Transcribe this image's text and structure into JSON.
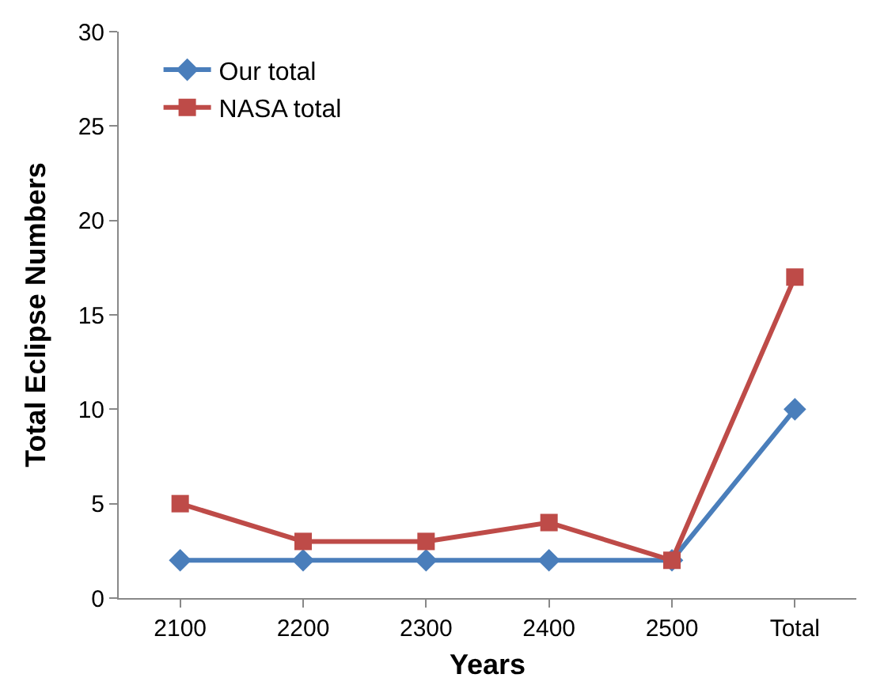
{
  "chart_data": {
    "type": "line",
    "xlabel": "Years",
    "ylabel": "Total Eclipse Numbers",
    "categories": [
      "2100",
      "2200",
      "2300",
      "2400",
      "2500",
      "Total"
    ],
    "series": [
      {
        "name": "Our total",
        "color": "#4a7ebb",
        "marker": "diamond",
        "values": [
          2,
          2,
          2,
          2,
          2,
          10
        ]
      },
      {
        "name": "NASA total",
        "color": "#be4b48",
        "marker": "square",
        "values": [
          5,
          3,
          3,
          4,
          2,
          17
        ]
      }
    ],
    "ylim": [
      0,
      30
    ],
    "yticks": [
      0,
      5,
      10,
      15,
      20,
      25,
      30
    ],
    "legend": "top left",
    "line_style": "solid"
  }
}
